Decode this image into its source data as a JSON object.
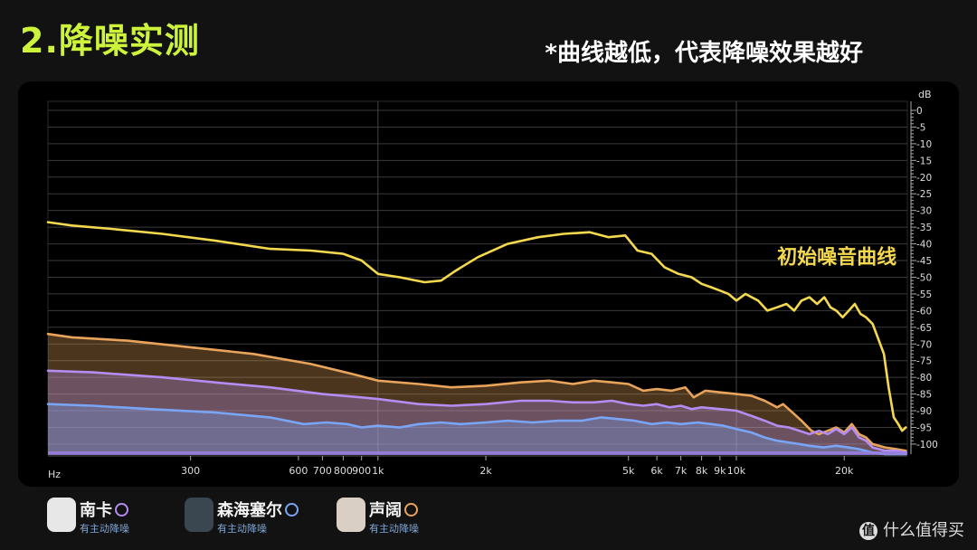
{
  "header": {
    "title": "2.降噪实测",
    "subtitle": "*曲线越低，代表降噪效果越好"
  },
  "legend": [
    {
      "name": "南卡",
      "tag": "有主动降噪",
      "color": "#b48cf2",
      "thumb": "#e7e7e7"
    },
    {
      "name": "森海塞尔",
      "tag": "有主动降噪",
      "color": "#7aa5f5",
      "thumb": "#3a4650"
    },
    {
      "name": "声阔",
      "tag": "有主动降噪",
      "color": "#e8a45a",
      "thumb": "#d9cfc4"
    }
  ],
  "watermark": {
    "icon_glyph": "值",
    "text": "什么值得买"
  },
  "chart_data": {
    "type": "line",
    "x_scale": "log",
    "xlim": [
      120,
      30000
    ],
    "ylim": [
      -103,
      0
    ],
    "xlabel": "Hz",
    "ylabel": "dB",
    "grid": true,
    "x_ticks": [
      {
        "v": 300,
        "label": "300"
      },
      {
        "v": 600,
        "label": "600"
      },
      {
        "v": 700,
        "label": "700"
      },
      {
        "v": 800,
        "label": "800"
      },
      {
        "v": 900,
        "label": "900"
      },
      {
        "v": 1000,
        "label": "1k"
      },
      {
        "v": 2000,
        "label": "2k"
      },
      {
        "v": 5000,
        "label": "5k"
      },
      {
        "v": 6000,
        "label": "6k"
      },
      {
        "v": 7000,
        "label": "7k"
      },
      {
        "v": 8000,
        "label": "8k"
      },
      {
        "v": 9000,
        "label": "9k"
      },
      {
        "v": 10000,
        "label": "10k"
      },
      {
        "v": 20000,
        "label": "20k"
      }
    ],
    "y_ticks": [
      0,
      -5,
      -10,
      -15,
      -20,
      -25,
      -30,
      -35,
      -40,
      -45,
      -50,
      -55,
      -60,
      -65,
      -70,
      -75,
      -80,
      -85,
      -90,
      -95,
      -100
    ],
    "x_grid": [
      1000,
      10000
    ],
    "annotations": [
      {
        "text": "初始噪音曲线",
        "x": 13000,
        "y": -46,
        "color": "#f4d94f"
      }
    ],
    "series": [
      {
        "name": "初始噪音曲线",
        "color": "#f4d94f",
        "fill": false,
        "points": [
          [
            120,
            -33.5
          ],
          [
            140,
            -34.5
          ],
          [
            180,
            -35.5
          ],
          [
            250,
            -37
          ],
          [
            350,
            -39
          ],
          [
            500,
            -41.5
          ],
          [
            650,
            -42
          ],
          [
            800,
            -43
          ],
          [
            900,
            -45
          ],
          [
            1000,
            -49
          ],
          [
            1150,
            -50
          ],
          [
            1350,
            -51.5
          ],
          [
            1500,
            -51
          ],
          [
            1650,
            -48
          ],
          [
            1900,
            -44
          ],
          [
            2300,
            -40
          ],
          [
            2800,
            -38
          ],
          [
            3300,
            -37
          ],
          [
            3900,
            -36.5
          ],
          [
            4400,
            -38
          ],
          [
            4900,
            -37.5
          ],
          [
            5300,
            -42
          ],
          [
            5800,
            -43
          ],
          [
            6300,
            -47
          ],
          [
            6900,
            -49
          ],
          [
            7500,
            -50
          ],
          [
            8000,
            -52
          ],
          [
            8500,
            -53
          ],
          [
            9000,
            -54
          ],
          [
            9500,
            -55
          ],
          [
            10000,
            -57
          ],
          [
            10600,
            -55
          ],
          [
            11500,
            -57
          ],
          [
            12200,
            -60
          ],
          [
            13000,
            -59
          ],
          [
            13800,
            -58
          ],
          [
            14500,
            -60
          ],
          [
            15200,
            -57
          ],
          [
            16000,
            -56
          ],
          [
            16800,
            -58
          ],
          [
            17600,
            -56
          ],
          [
            18300,
            -59
          ],
          [
            19000,
            -60
          ],
          [
            19800,
            -62
          ],
          [
            20600,
            -60
          ],
          [
            21400,
            -58
          ],
          [
            22200,
            -61
          ],
          [
            23000,
            -62
          ],
          [
            24000,
            -64
          ],
          [
            25000,
            -69
          ],
          [
            25800,
            -73
          ],
          [
            26600,
            -83
          ],
          [
            27500,
            -92
          ],
          [
            28300,
            -94
          ],
          [
            29000,
            -96
          ],
          [
            29700,
            -95
          ]
        ]
      },
      {
        "name": "声阔",
        "color": "#e8a45a",
        "fill": true,
        "points": [
          [
            120,
            -67
          ],
          [
            140,
            -68
          ],
          [
            200,
            -69
          ],
          [
            300,
            -71
          ],
          [
            450,
            -73
          ],
          [
            650,
            -76
          ],
          [
            850,
            -79
          ],
          [
            1000,
            -81
          ],
          [
            1300,
            -82
          ],
          [
            1600,
            -83
          ],
          [
            2000,
            -82.5
          ],
          [
            2500,
            -81.5
          ],
          [
            3000,
            -81
          ],
          [
            3500,
            -82
          ],
          [
            4000,
            -81
          ],
          [
            4500,
            -81.5
          ],
          [
            5000,
            -82
          ],
          [
            5500,
            -84
          ],
          [
            6000,
            -83.5
          ],
          [
            6600,
            -84
          ],
          [
            7200,
            -83
          ],
          [
            7600,
            -86
          ],
          [
            8200,
            -84
          ],
          [
            9000,
            -84.5
          ],
          [
            10000,
            -85
          ],
          [
            11000,
            -85.5
          ],
          [
            12000,
            -87
          ],
          [
            13000,
            -89
          ],
          [
            13500,
            -88
          ],
          [
            14500,
            -91
          ],
          [
            15200,
            -93
          ],
          [
            16200,
            -96
          ],
          [
            17000,
            -97
          ],
          [
            18000,
            -96
          ],
          [
            19000,
            -95
          ],
          [
            20000,
            -96.5
          ],
          [
            21000,
            -94
          ],
          [
            22000,
            -97
          ],
          [
            23000,
            -98
          ],
          [
            24000,
            -100
          ],
          [
            26000,
            -101
          ],
          [
            28000,
            -101.5
          ],
          [
            29700,
            -102
          ]
        ]
      },
      {
        "name": "南卡",
        "color": "#b48cf2",
        "fill": true,
        "points": [
          [
            120,
            -78
          ],
          [
            160,
            -78.5
          ],
          [
            250,
            -80
          ],
          [
            350,
            -81.5
          ],
          [
            500,
            -83
          ],
          [
            700,
            -85
          ],
          [
            900,
            -86
          ],
          [
            1000,
            -86.5
          ],
          [
            1300,
            -88
          ],
          [
            1600,
            -88.5
          ],
          [
            2000,
            -88
          ],
          [
            2500,
            -87
          ],
          [
            3000,
            -87
          ],
          [
            3500,
            -87.5
          ],
          [
            4000,
            -87.5
          ],
          [
            4500,
            -87
          ],
          [
            5000,
            -88
          ],
          [
            5500,
            -88.5
          ],
          [
            6000,
            -88
          ],
          [
            6500,
            -89
          ],
          [
            7000,
            -88.5
          ],
          [
            7500,
            -89.5
          ],
          [
            8000,
            -89
          ],
          [
            9000,
            -89.5
          ],
          [
            10000,
            -90
          ],
          [
            11000,
            -91.5
          ],
          [
            12000,
            -93
          ],
          [
            13000,
            -94.5
          ],
          [
            14000,
            -95
          ],
          [
            15000,
            -96
          ],
          [
            16000,
            -97
          ],
          [
            17000,
            -96
          ],
          [
            18000,
            -97
          ],
          [
            19000,
            -95.5
          ],
          [
            20000,
            -97
          ],
          [
            21000,
            -95
          ],
          [
            22000,
            -98
          ],
          [
            23000,
            -99
          ],
          [
            24000,
            -101
          ],
          [
            26000,
            -102
          ],
          [
            28000,
            -102
          ],
          [
            29700,
            -102.5
          ]
        ]
      },
      {
        "name": "森海塞尔",
        "color": "#7aa5f5",
        "fill": true,
        "points": [
          [
            120,
            -88
          ],
          [
            160,
            -88.5
          ],
          [
            230,
            -89.5
          ],
          [
            350,
            -90.5
          ],
          [
            500,
            -92
          ],
          [
            620,
            -94
          ],
          [
            720,
            -93.5
          ],
          [
            820,
            -94
          ],
          [
            900,
            -95
          ],
          [
            1000,
            -94.5
          ],
          [
            1150,
            -95
          ],
          [
            1300,
            -94
          ],
          [
            1500,
            -93.5
          ],
          [
            1700,
            -94
          ],
          [
            2000,
            -93.5
          ],
          [
            2300,
            -93
          ],
          [
            2700,
            -93.5
          ],
          [
            3200,
            -93
          ],
          [
            3700,
            -93
          ],
          [
            4200,
            -92
          ],
          [
            4700,
            -92.5
          ],
          [
            5200,
            -93
          ],
          [
            5800,
            -94
          ],
          [
            6400,
            -93.5
          ],
          [
            7000,
            -94
          ],
          [
            7800,
            -93.5
          ],
          [
            8500,
            -94
          ],
          [
            9200,
            -94.5
          ],
          [
            10000,
            -95.5
          ],
          [
            11000,
            -96.5
          ],
          [
            12000,
            -98
          ],
          [
            13000,
            -99
          ],
          [
            14000,
            -99.5
          ],
          [
            15000,
            -100
          ],
          [
            16000,
            -100.5
          ],
          [
            17500,
            -101
          ],
          [
            19000,
            -100.5
          ],
          [
            20500,
            -101
          ],
          [
            22000,
            -101.5
          ],
          [
            24000,
            -102.5
          ],
          [
            26000,
            -103
          ],
          [
            29700,
            -103
          ]
        ]
      }
    ]
  }
}
